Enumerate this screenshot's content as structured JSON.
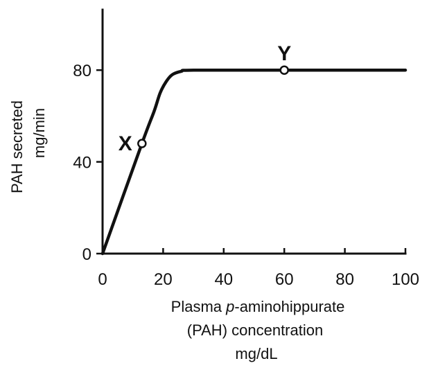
{
  "chart_data": {
    "type": "line",
    "title": "",
    "xlabel": {
      "line1_prefix": "Plasma ",
      "line1_italic": "p",
      "line1_suffix": "-aminohippurate",
      "line2": "(PAH) concentration",
      "line3": "mg/dL"
    },
    "ylabel": {
      "line1": "PAH secreted",
      "line2": "mg/min"
    },
    "xlim": [
      0,
      100
    ],
    "ylim": [
      0,
      100
    ],
    "xticks": [
      0,
      20,
      40,
      60,
      80,
      100
    ],
    "xtick_labels": [
      "0",
      "20",
      "40",
      "60",
      "80",
      "100"
    ],
    "yticks": [
      0,
      40,
      80
    ],
    "ytick_labels": [
      "0",
      "40",
      "80"
    ],
    "grid": false,
    "series": [
      {
        "points": [
          {
            "x": 0,
            "y": 0
          },
          {
            "x": 13,
            "y": 48
          },
          {
            "x": 17,
            "y": 62
          },
          {
            "x": 19,
            "y": 70
          },
          {
            "x": 21,
            "y": 75
          },
          {
            "x": 23,
            "y": 78
          },
          {
            "x": 26,
            "y": 79.5
          },
          {
            "x": 30,
            "y": 80
          },
          {
            "x": 60,
            "y": 80
          },
          {
            "x": 100,
            "y": 80
          }
        ]
      }
    ],
    "annotations": [
      {
        "label": "X",
        "x": 13,
        "y": 48,
        "marker": "open-circle"
      },
      {
        "label": "Y",
        "x": 60,
        "y": 80,
        "marker": "open-circle"
      }
    ]
  }
}
